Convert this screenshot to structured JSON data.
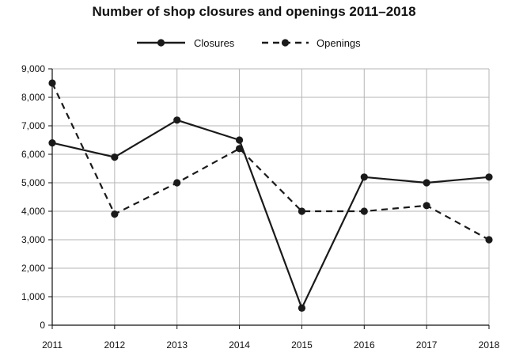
{
  "chart_data": {
    "type": "line",
    "title": "Number of shop closures and openings 2011–2018",
    "xlabel": "",
    "ylabel": "",
    "categories": [
      "2011",
      "2012",
      "2013",
      "2014",
      "2015",
      "2016",
      "2017",
      "2018"
    ],
    "ylim": [
      0,
      9000
    ],
    "yticks": [
      "0",
      "1,000",
      "2,000",
      "3,000",
      "4,000",
      "5,000",
      "6,000",
      "7,000",
      "8,000",
      "9,000"
    ],
    "ytick_values": [
      0,
      1000,
      2000,
      3000,
      4000,
      5000,
      6000,
      7000,
      8000,
      9000
    ],
    "grid": true,
    "legend_position": "top-center",
    "series": [
      {
        "name": "Closures",
        "line_style": "solid",
        "color": "#1a1a1a",
        "values": [
          6400,
          5900,
          7200,
          6500,
          600,
          5200,
          5000,
          5200
        ]
      },
      {
        "name": "Openings",
        "line_style": "dashed",
        "color": "#1a1a1a",
        "values": [
          8500,
          3900,
          5000,
          6200,
          4000,
          4000,
          4200,
          3000
        ]
      }
    ]
  }
}
